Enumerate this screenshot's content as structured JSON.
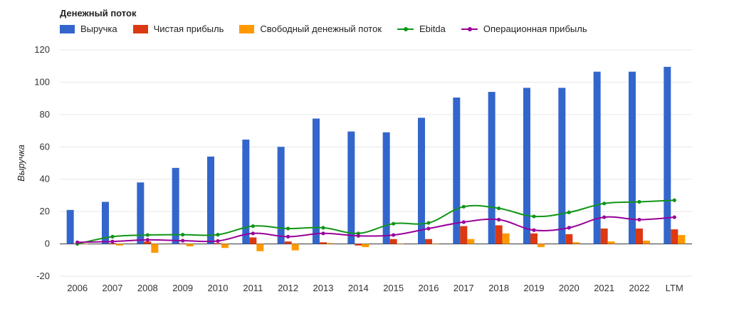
{
  "chart_data": {
    "type": "bar",
    "title": "Денежный поток",
    "ylabel": "Выручка",
    "xlabel": "",
    "ylim": [
      -20,
      120
    ],
    "yticks": [
      -20,
      0,
      20,
      40,
      60,
      80,
      100,
      120
    ],
    "grid": true,
    "legend_position": "top-left",
    "categories": [
      "2006",
      "2007",
      "2008",
      "2009",
      "2010",
      "2011",
      "2012",
      "2013",
      "2014",
      "2015",
      "2016",
      "2017",
      "2018",
      "2019",
      "2020",
      "2021",
      "2022",
      "LTM"
    ],
    "bar_series": [
      {
        "name": "Выручка",
        "color": "#3366cc",
        "values": [
          21,
          26,
          38,
          47,
          54,
          64.5,
          60,
          77.5,
          69.5,
          69,
          78,
          90.5,
          94,
          96.5,
          96.5,
          106.5,
          106.5,
          109.5
        ]
      },
      {
        "name": "Чистая прибыль",
        "color": "#dc3912",
        "values": [
          0.3,
          0.5,
          1.5,
          0.3,
          0.5,
          4,
          1.5,
          1,
          -1,
          3,
          3,
          11,
          11.5,
          6.5,
          6,
          9.5,
          9.5,
          9
        ]
      },
      {
        "name": "Свободный денежный поток",
        "color": "#ff9900",
        "values": [
          0,
          -1,
          -5.5,
          -1.5,
          -2.5,
          -4.5,
          -4,
          0.5,
          -2,
          0,
          0,
          3,
          6.5,
          -2,
          1,
          1.5,
          2,
          5.5
        ]
      }
    ],
    "line_series": [
      {
        "name": "Ebitda",
        "color": "#109618",
        "values": [
          0,
          4.5,
          5.5,
          5.7,
          5.7,
          11,
          9.5,
          10,
          6.5,
          12.5,
          13,
          23,
          22,
          17,
          19.5,
          25,
          26,
          27
        ]
      },
      {
        "name": "Операционная прибыль",
        "color": "#990099",
        "values": [
          1,
          1.5,
          2.5,
          2,
          1.8,
          6.5,
          4.5,
          6.5,
          5,
          5.5,
          9.5,
          13.5,
          15,
          8.5,
          10,
          16.5,
          15,
          16.5
        ]
      }
    ]
  }
}
